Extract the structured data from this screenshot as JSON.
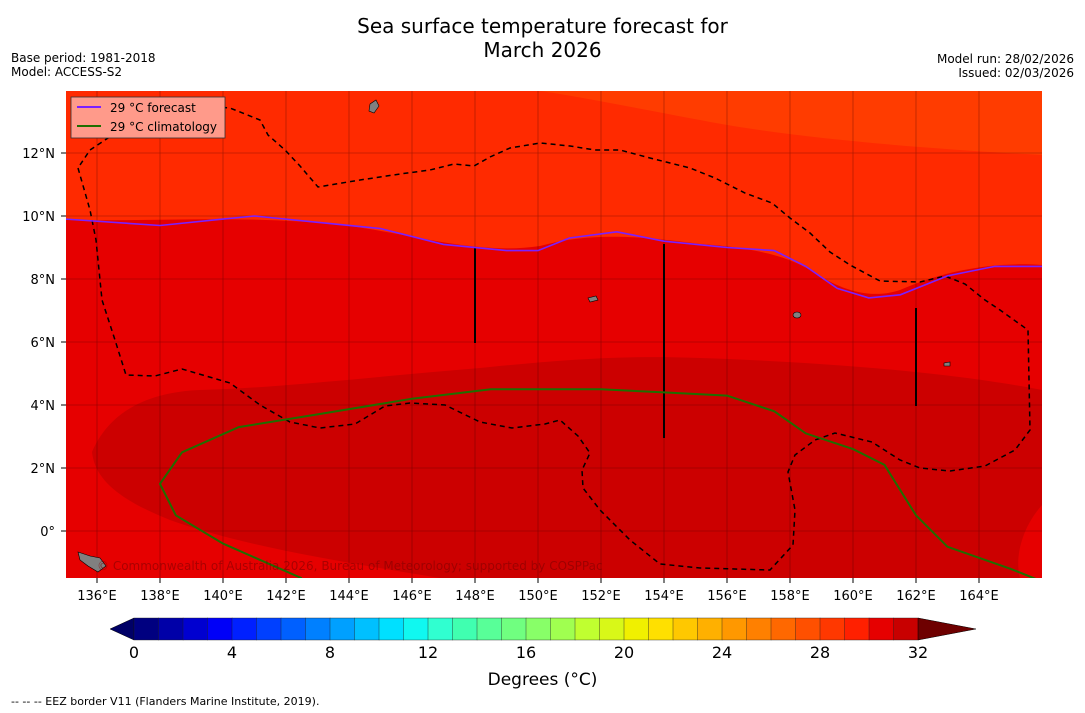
{
  "title_line1": "Sea surface temperature forecast for",
  "title_line2": "March 2026",
  "base_period": "Base period: 1981-2018",
  "model": "Model: ACCESS-S2",
  "model_run": "Model run: 28/02/2026",
  "issued": "Issued: 02/03/2026",
  "legend": {
    "forecast": "29 °C  forecast",
    "climatology": "29 °C  climatology"
  },
  "copyright": "© Commonwealth of Australia 2026, Bureau of Meteorology; supported by COSPPac",
  "colorbar": {
    "label": "Degrees (°C)",
    "ticks": [
      "0",
      "4",
      "8",
      "12",
      "16",
      "20",
      "24",
      "28",
      "32"
    ]
  },
  "footnote": "--  --  -- EEZ border V11 (Flanders Marine Institute, 2019).",
  "chart_data": {
    "type": "heatmap",
    "variable": "Sea surface temperature (°C)",
    "x_ticks": [
      "136°E",
      "138°E",
      "140°E",
      "142°E",
      "144°E",
      "146°E",
      "148°E",
      "150°E",
      "152°E",
      "154°E",
      "156°E",
      "158°E",
      "160°E",
      "162°E",
      "164°E"
    ],
    "y_ticks": [
      "12°N",
      "10°N",
      "8°N",
      "6°N",
      "4°N",
      "2°N",
      "0°"
    ],
    "xlim": [
      135,
      166
    ],
    "ylim": [
      -1.5,
      14
    ],
    "forecast_29C_contour": [
      [
        135,
        9.9
      ],
      [
        138,
        9.7
      ],
      [
        140,
        9.9
      ],
      [
        141,
        10.0
      ],
      [
        143,
        9.8
      ],
      [
        145,
        9.6
      ],
      [
        147,
        9.1
      ],
      [
        149,
        8.9
      ],
      [
        150,
        8.9
      ],
      [
        151,
        9.3
      ],
      [
        152.5,
        9.5
      ],
      [
        154,
        9.2
      ],
      [
        156,
        9.0
      ],
      [
        157.5,
        8.9
      ],
      [
        158.5,
        8.4
      ],
      [
        159.5,
        7.7
      ],
      [
        160.5,
        7.4
      ],
      [
        161.5,
        7.5
      ],
      [
        163,
        8.1
      ],
      [
        164.5,
        8.4
      ],
      [
        166,
        8.4
      ]
    ],
    "climatology_29C_contour": [
      [
        142.5,
        -1.5
      ],
      [
        140,
        -0.4
      ],
      [
        138.5,
        0.5
      ],
      [
        138,
        1.5
      ],
      [
        138.7,
        2.5
      ],
      [
        140.5,
        3.3
      ],
      [
        143,
        3.7
      ],
      [
        146,
        4.2
      ],
      [
        148.5,
        4.5
      ],
      [
        150,
        4.5
      ],
      [
        152,
        4.5
      ],
      [
        154,
        4.4
      ],
      [
        156,
        4.3
      ],
      [
        157.5,
        3.8
      ],
      [
        158.5,
        3.1
      ],
      [
        160,
        2.6
      ],
      [
        161,
        2.1
      ],
      [
        162,
        0.5
      ],
      [
        163,
        -0.5
      ],
      [
        165,
        -1.2
      ],
      [
        166,
        -1.6
      ]
    ]
  }
}
